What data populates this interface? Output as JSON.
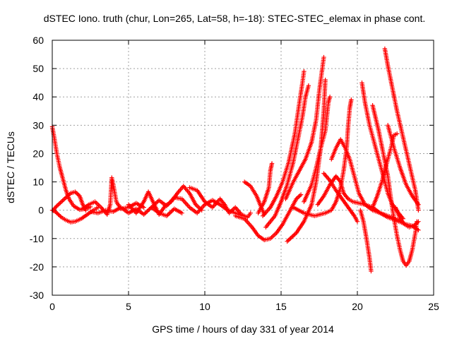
{
  "chart_data": {
    "type": "scatter",
    "title": "dSTEC Iono. truth (chur, Lon=265, Lat=58, h=-18): STEC-STEC_elemax in phase cont.",
    "xlabel": "GPS time / hours of day 331 of year 2014",
    "ylabel": "dSTEC  / TECUs",
    "xlim": [
      0,
      25
    ],
    "ylim": [
      -30,
      60
    ],
    "xticks": [
      0,
      5,
      10,
      15,
      20,
      25
    ],
    "yticks": [
      -30,
      -20,
      -10,
      0,
      10,
      20,
      30,
      40,
      50,
      60
    ],
    "grid": true,
    "marker": "plus",
    "color": "#ff0000",
    "tracks": [
      [
        [
          0.0,
          29.5
        ],
        [
          0.15,
          25
        ],
        [
          0.3,
          20
        ],
        [
          0.5,
          15
        ],
        [
          0.7,
          11
        ],
        [
          0.9,
          7
        ],
        [
          1.1,
          4
        ],
        [
          1.4,
          1.5
        ],
        [
          1.8,
          0.2
        ],
        [
          2.2,
          0.5
        ],
        [
          2.5,
          1.2
        ]
      ],
      [
        [
          0.0,
          0
        ],
        [
          0.2,
          -0.5
        ],
        [
          0.4,
          -1.5
        ],
        [
          0.6,
          -2.5
        ],
        [
          0.9,
          -3.5
        ],
        [
          1.2,
          -4.2
        ],
        [
          1.5,
          -4
        ],
        [
          1.9,
          -3
        ],
        [
          2.3,
          -1.5
        ],
        [
          2.7,
          0
        ],
        [
          3.0,
          1
        ]
      ],
      [
        [
          0.05,
          0
        ],
        [
          0.3,
          1.5
        ],
        [
          0.6,
          3
        ],
        [
          0.9,
          4.5
        ],
        [
          1.2,
          6
        ],
        [
          1.5,
          6.5
        ],
        [
          1.8,
          5
        ],
        [
          2.0,
          2
        ],
        [
          2.2,
          0
        ]
      ],
      [
        [
          2.0,
          0.5
        ],
        [
          2.4,
          2
        ],
        [
          2.8,
          3
        ],
        [
          3.2,
          1
        ],
        [
          3.6,
          -1.5
        ],
        [
          3.8,
          2
        ],
        [
          3.9,
          11.5
        ],
        [
          4.0,
          9
        ],
        [
          4.2,
          3
        ],
        [
          4.5,
          0.5
        ],
        [
          5.0,
          1
        ],
        [
          5.5,
          2.5
        ],
        [
          6.0,
          1
        ]
      ],
      [
        [
          2.5,
          -0.5
        ],
        [
          3.0,
          -1
        ],
        [
          3.5,
          0
        ],
        [
          4.0,
          -0.5
        ],
        [
          4.5,
          1
        ],
        [
          5.0,
          -1
        ],
        [
          5.5,
          0.5
        ],
        [
          6.0,
          -1.5
        ],
        [
          6.5,
          1
        ],
        [
          7.0,
          -1
        ],
        [
          7.5,
          -2
        ],
        [
          8.0,
          0.5
        ],
        [
          8.5,
          -1
        ]
      ],
      [
        [
          5.0,
          2
        ],
        [
          5.5,
          -1
        ],
        [
          6.0,
          3
        ],
        [
          6.3,
          6.5
        ],
        [
          6.6,
          3
        ],
        [
          7.0,
          -1.5
        ],
        [
          7.4,
          1.5
        ],
        [
          7.8,
          3
        ],
        [
          8.2,
          6
        ],
        [
          8.6,
          8.5
        ],
        [
          9.0,
          6
        ],
        [
          9.4,
          2
        ],
        [
          9.8,
          0
        ]
      ],
      [
        [
          6.5,
          1
        ],
        [
          7.0,
          3.5
        ],
        [
          7.5,
          1.5
        ],
        [
          8.0,
          4.5
        ],
        [
          8.5,
          4
        ],
        [
          9.0,
          1
        ],
        [
          9.5,
          -1
        ],
        [
          10.0,
          2
        ],
        [
          10.5,
          3.5
        ],
        [
          11.0,
          2
        ],
        [
          11.5,
          0
        ],
        [
          12.0,
          -1
        ],
        [
          12.5,
          -2
        ]
      ],
      [
        [
          9.0,
          8
        ],
        [
          9.5,
          7
        ],
        [
          10.0,
          3
        ],
        [
          10.5,
          1
        ],
        [
          11.0,
          4
        ],
        [
          11.3,
          2
        ],
        [
          11.6,
          -1
        ],
        [
          12.0,
          1
        ],
        [
          12.4,
          -1.5
        ],
        [
          12.8,
          -2.5
        ],
        [
          13.0,
          -1
        ]
      ],
      [
        [
          12.6,
          10
        ],
        [
          13.0,
          8.5
        ],
        [
          13.4,
          5
        ],
        [
          13.7,
          1
        ],
        [
          13.9,
          -1.5
        ]
      ],
      [
        [
          12.0,
          -2
        ],
        [
          12.6,
          -3
        ],
        [
          13.1,
          -6
        ],
        [
          13.5,
          -9
        ],
        [
          13.9,
          -10.5
        ],
        [
          14.3,
          -10
        ],
        [
          14.7,
          -8
        ],
        [
          15.1,
          -5
        ],
        [
          15.5,
          -1
        ],
        [
          15.8,
          2
        ],
        [
          16.0,
          4
        ],
        [
          16.3,
          5.5
        ]
      ],
      [
        [
          13.5,
          -1
        ],
        [
          13.9,
          3
        ],
        [
          14.2,
          8
        ],
        [
          14.3,
          14
        ],
        [
          14.4,
          16.5
        ]
      ],
      [
        [
          13.8,
          -2
        ],
        [
          14.3,
          1
        ],
        [
          14.7,
          5
        ],
        [
          15.1,
          10
        ],
        [
          15.5,
          17
        ],
        [
          15.9,
          27
        ],
        [
          16.2,
          38
        ],
        [
          16.4,
          45
        ],
        [
          16.5,
          49
        ]
      ],
      [
        [
          14.0,
          -6
        ],
        [
          14.6,
          -2
        ],
        [
          15.0,
          3
        ],
        [
          15.4,
          9
        ],
        [
          15.8,
          17
        ],
        [
          16.1,
          25
        ],
        [
          16.4,
          33
        ],
        [
          16.6,
          40
        ],
        [
          16.8,
          44
        ]
      ],
      [
        [
          15.4,
          -11
        ],
        [
          16.0,
          -8
        ],
        [
          16.5,
          -4
        ],
        [
          17.0,
          2
        ],
        [
          17.3,
          10
        ],
        [
          17.6,
          22
        ],
        [
          17.8,
          35
        ],
        [
          17.9,
          46
        ]
      ],
      [
        [
          15.3,
          4
        ],
        [
          15.8,
          10
        ],
        [
          16.2,
          14
        ],
        [
          16.6,
          18
        ],
        [
          17.0,
          24
        ],
        [
          17.3,
          32
        ],
        [
          17.5,
          42
        ],
        [
          17.7,
          50
        ],
        [
          17.8,
          54
        ]
      ],
      [
        [
          16.5,
          3
        ],
        [
          17.0,
          9
        ],
        [
          17.3,
          15
        ],
        [
          17.6,
          22
        ],
        [
          17.9,
          28
        ],
        [
          18.0,
          33
        ],
        [
          18.1,
          38
        ],
        [
          18.2,
          40
        ]
      ],
      [
        [
          15.8,
          1
        ],
        [
          16.5,
          -1
        ],
        [
          17.2,
          -2
        ],
        [
          17.9,
          -1
        ],
        [
          18.3,
          0
        ],
        [
          18.6,
          3
        ],
        [
          18.9,
          8
        ],
        [
          19.1,
          14
        ],
        [
          19.3,
          22
        ],
        [
          19.4,
          30
        ],
        [
          19.5,
          36
        ],
        [
          19.6,
          39
        ]
      ],
      [
        [
          17.8,
          13
        ],
        [
          18.2,
          10.5
        ],
        [
          18.6,
          7
        ],
        [
          19.0,
          4
        ],
        [
          19.4,
          1
        ],
        [
          19.8,
          -2
        ],
        [
          20.0,
          -4
        ]
      ],
      [
        [
          17.4,
          2
        ],
        [
          17.8,
          5
        ],
        [
          18.2,
          9
        ],
        [
          18.6,
          12
        ],
        [
          18.9,
          10
        ],
        [
          19.1,
          6
        ],
        [
          19.4,
          4
        ],
        [
          19.7,
          3
        ],
        [
          20.1,
          2.5
        ],
        [
          20.5,
          2
        ],
        [
          21.0,
          1
        ],
        [
          21.5,
          -1
        ],
        [
          22.0,
          -2
        ],
        [
          22.5,
          -3
        ],
        [
          22.8,
          -4
        ]
      ],
      [
        [
          18.3,
          18
        ],
        [
          18.6,
          22
        ],
        [
          18.9,
          25
        ],
        [
          19.2,
          22
        ],
        [
          19.5,
          18
        ],
        [
          19.8,
          12
        ],
        [
          20.1,
          6
        ],
        [
          20.5,
          2
        ],
        [
          21.0,
          0
        ],
        [
          21.5,
          -1
        ],
        [
          22.0,
          -2.5
        ],
        [
          22.5,
          -3.5
        ],
        [
          23.2,
          -5
        ],
        [
          23.6,
          -5.5
        ],
        [
          24.0,
          -7
        ]
      ],
      [
        [
          20.2,
          0
        ],
        [
          20.4,
          -4
        ],
        [
          20.6,
          -10
        ],
        [
          20.8,
          -17
        ],
        [
          20.9,
          -21.5
        ]
      ],
      [
        [
          20.3,
          45
        ],
        [
          20.5,
          38
        ],
        [
          20.8,
          30
        ],
        [
          21.1,
          24
        ],
        [
          21.4,
          18
        ],
        [
          21.7,
          12
        ],
        [
          22.0,
          6
        ],
        [
          22.3,
          2
        ],
        [
          22.7,
          -1
        ],
        [
          23.0,
          -3
        ]
      ],
      [
        [
          21.0,
          1
        ],
        [
          21.3,
          5
        ],
        [
          21.6,
          10
        ],
        [
          21.9,
          16
        ],
        [
          22.2,
          22
        ],
        [
          22.4,
          26.5
        ],
        [
          22.6,
          27
        ]
      ],
      [
        [
          21.0,
          37
        ],
        [
          21.4,
          28
        ],
        [
          21.7,
          20
        ],
        [
          22.0,
          12
        ],
        [
          22.2,
          4
        ],
        [
          22.4,
          -3
        ],
        [
          22.6,
          -9
        ],
        [
          22.8,
          -14
        ],
        [
          23.0,
          -18
        ],
        [
          23.2,
          -19.5
        ],
        [
          23.4,
          -18
        ],
        [
          23.6,
          -14
        ],
        [
          23.8,
          -8
        ],
        [
          23.9,
          -4
        ]
      ],
      [
        [
          21.8,
          57
        ],
        [
          22.0,
          51
        ],
        [
          22.3,
          43
        ],
        [
          22.6,
          35
        ],
        [
          22.9,
          28
        ],
        [
          23.2,
          21
        ],
        [
          23.5,
          14
        ],
        [
          23.8,
          7
        ],
        [
          24.0,
          0
        ]
      ],
      [
        [
          22.5,
          1
        ],
        [
          22.8,
          -3
        ],
        [
          23.1,
          -5
        ],
        [
          23.4,
          -6
        ],
        [
          23.7,
          -5.5
        ],
        [
          24.0,
          -4
        ]
      ],
      [
        [
          22.0,
          30
        ],
        [
          22.4,
          22
        ],
        [
          22.8,
          15
        ],
        [
          23.2,
          9
        ],
        [
          23.6,
          5
        ],
        [
          24.0,
          2
        ]
      ]
    ]
  }
}
